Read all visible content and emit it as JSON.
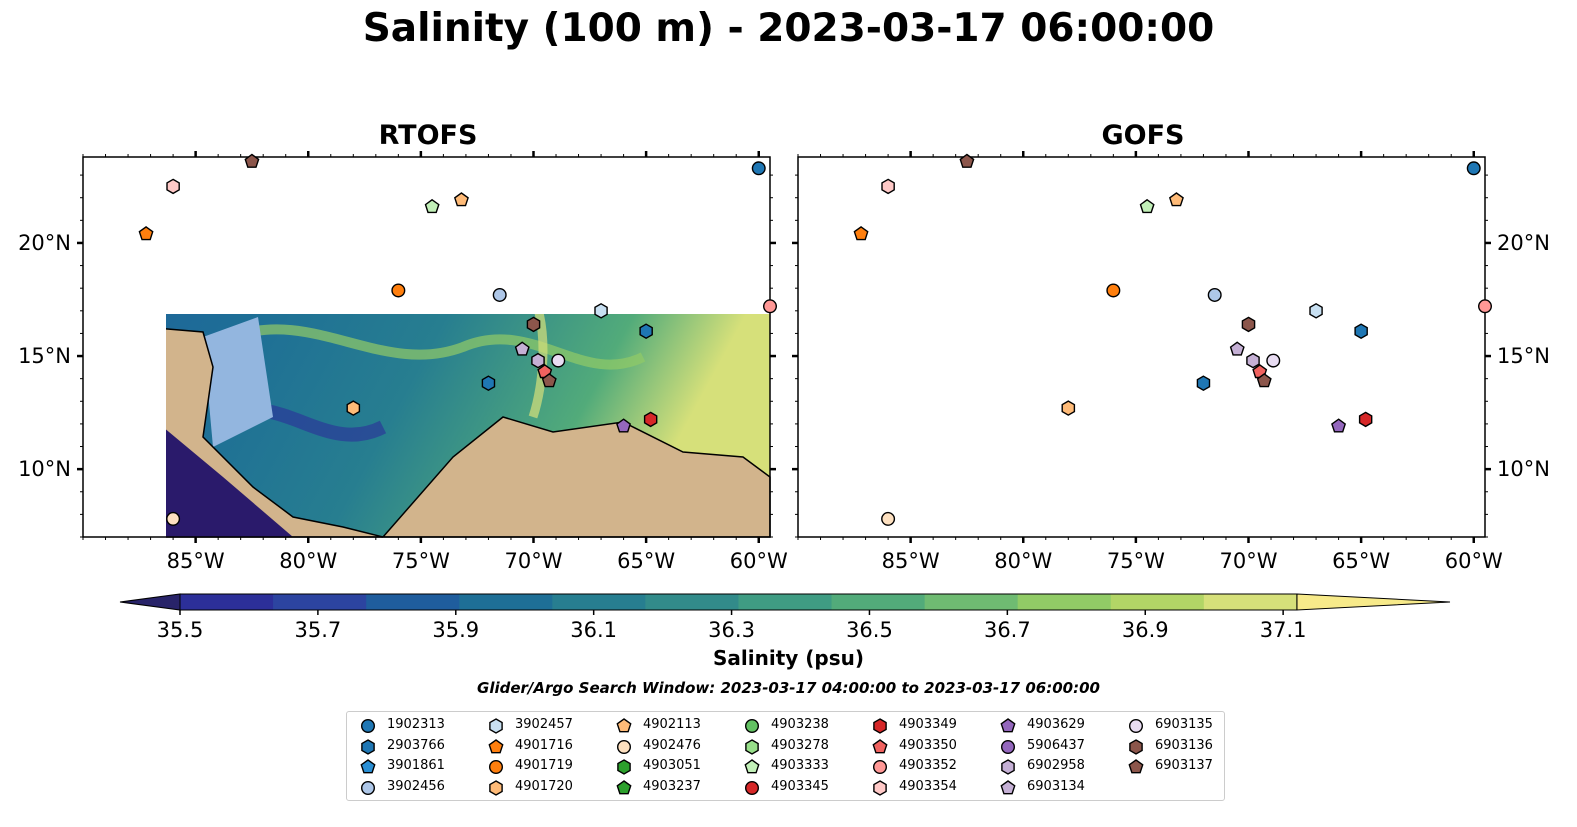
{
  "title": "Salinity (100 m) - 2023-03-17 06:00:00",
  "panels": [
    {
      "title": "RTOFS"
    },
    {
      "title": "GOFS"
    }
  ],
  "axes": {
    "lon_ticks": [
      "85°W",
      "80°W",
      "75°W",
      "70°W",
      "65°W",
      "60°W"
    ],
    "lat_ticks": [
      "20°N",
      "15°N",
      "10°N"
    ],
    "lon_range": [
      -90.0,
      -59.5
    ],
    "lat_range": [
      7.0,
      23.8
    ]
  },
  "colorbar": {
    "label": "Salinity (psu)",
    "ticks": [
      "35.5",
      "35.7",
      "35.9",
      "36.1",
      "36.3",
      "36.5",
      "36.7",
      "36.9",
      "37.1"
    ],
    "range": [
      35.5,
      37.2
    ],
    "colors": [
      "#282369",
      "#2c2f99",
      "#2c44a0",
      "#1f5d9d",
      "#1e6f96",
      "#277e90",
      "#328b8a",
      "#3f9c83",
      "#52ab7a",
      "#6fbb72",
      "#91cb66",
      "#b2d566",
      "#d6e07a",
      "#f7ea8a"
    ]
  },
  "colors": {
    "land": "#d2b48c",
    "shallow_water": "#93b6df",
    "deep_pacific": "#2a1a6b"
  },
  "search_window": "Glider/Argo Search Window: 2023-03-17 04:00:00 to 2023-03-17 06:00:00",
  "legend": [
    {
      "id": "1902313",
      "color": "#1f77b4",
      "marker": "circle"
    },
    {
      "id": "2903766",
      "color": "#1f77b4",
      "marker": "hexagon"
    },
    {
      "id": "3901861",
      "color": "#2a8fd4",
      "marker": "pentagon"
    },
    {
      "id": "3902456",
      "color": "#aec7e8",
      "marker": "circle"
    },
    {
      "id": "3902457",
      "color": "#c8e0f2",
      "marker": "hexagon"
    },
    {
      "id": "4901716",
      "color": "#ff7f0e",
      "marker": "pentagon"
    },
    {
      "id": "4901719",
      "color": "#ff7f0e",
      "marker": "circle"
    },
    {
      "id": "4901720",
      "color": "#ffbb78",
      "marker": "hexagon"
    },
    {
      "id": "4902113",
      "color": "#ffbb78",
      "marker": "pentagon"
    },
    {
      "id": "4902476",
      "color": "#fde0c0",
      "marker": "circle"
    },
    {
      "id": "4903051",
      "color": "#2ca02c",
      "marker": "hexagon"
    },
    {
      "id": "4903237",
      "color": "#2ca02c",
      "marker": "pentagon"
    },
    {
      "id": "4903238",
      "color": "#62c162",
      "marker": "circle"
    },
    {
      "id": "4903278",
      "color": "#98df8a",
      "marker": "hexagon"
    },
    {
      "id": "4903333",
      "color": "#c2f0b8",
      "marker": "pentagon"
    },
    {
      "id": "4903345",
      "color": "#d62728",
      "marker": "circle"
    },
    {
      "id": "4903349",
      "color": "#d62728",
      "marker": "hexagon"
    },
    {
      "id": "4903350",
      "color": "#f0625f",
      "marker": "pentagon"
    },
    {
      "id": "4903352",
      "color": "#ff9896",
      "marker": "circle"
    },
    {
      "id": "4903354",
      "color": "#ffc9c7",
      "marker": "hexagon"
    },
    {
      "id": "4903629",
      "color": "#9467bd",
      "marker": "pentagon"
    },
    {
      "id": "5906437",
      "color": "#9467bd",
      "marker": "circle"
    },
    {
      "id": "6902958",
      "color": "#c5b0d5",
      "marker": "hexagon"
    },
    {
      "id": "6903134",
      "color": "#c5b0d5",
      "marker": "pentagon"
    },
    {
      "id": "6903135",
      "color": "#e8dcf2",
      "marker": "circle"
    },
    {
      "id": "6903136",
      "color": "#8c564b",
      "marker": "hexagon"
    },
    {
      "id": "6903137",
      "color": "#8c564b",
      "marker": "pentagon"
    }
  ],
  "markers": [
    {
      "id": "1902313",
      "lon": -60.0,
      "lat": 23.3
    },
    {
      "id": "6903137",
      "lon": -82.5,
      "lat": 23.6
    },
    {
      "id": "4903354",
      "lon": -86.0,
      "lat": 22.5
    },
    {
      "id": "4901716",
      "lon": -87.2,
      "lat": 20.4
    },
    {
      "id": "4903333",
      "lon": -74.5,
      "lat": 21.6
    },
    {
      "id": "4902113",
      "lon": -73.2,
      "lat": 21.9
    },
    {
      "id": "4901719",
      "lon": -76.0,
      "lat": 17.9
    },
    {
      "id": "3902456",
      "lon": -71.5,
      "lat": 17.7
    },
    {
      "id": "3902457",
      "lon": -67.0,
      "lat": 17.0
    },
    {
      "id": "2903766",
      "lon": -65.0,
      "lat": 16.1
    },
    {
      "id": "4903352",
      "lon": -59.5,
      "lat": 17.2
    },
    {
      "id": "6903136",
      "lon": -70.0,
      "lat": 16.4
    },
    {
      "id": "6903134",
      "lon": -70.5,
      "lat": 15.3
    },
    {
      "id": "6902958",
      "lon": -69.8,
      "lat": 14.8
    },
    {
      "id": "6903135",
      "lon": -68.9,
      "lat": 14.8
    },
    {
      "id": "4903350",
      "lon": -69.5,
      "lat": 14.3
    },
    {
      "id": "6903137",
      "lon": -69.3,
      "lat": 13.9
    },
    {
      "id": "2903766",
      "lon": -72.0,
      "lat": 13.8
    },
    {
      "id": "4901720",
      "lon": -78.0,
      "lat": 12.7
    },
    {
      "id": "4903349",
      "lon": -64.8,
      "lat": 12.2
    },
    {
      "id": "4903629",
      "lon": -66.0,
      "lat": 11.9
    },
    {
      "id": "4902476",
      "lon": -86.0,
      "lat": 7.8
    }
  ]
}
